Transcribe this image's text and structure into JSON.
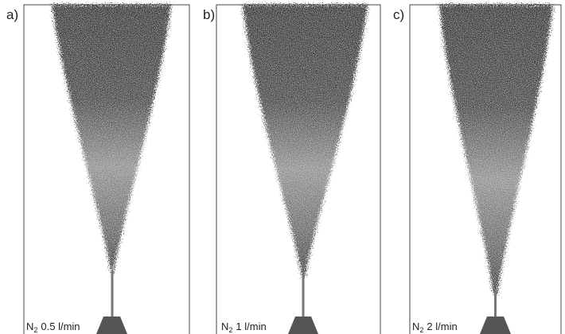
{
  "panels": [
    {
      "label": "a)",
      "caption": {
        "gas": "N",
        "subscript": "2",
        "flow": "0.5 l/min"
      }
    },
    {
      "label": "b)",
      "caption": {
        "gas": "N",
        "subscript": "2",
        "flow": "1 l/min"
      }
    },
    {
      "label": "c)",
      "caption": {
        "gas": "N",
        "subscript": "2",
        "flow": "2 l/min"
      }
    }
  ]
}
